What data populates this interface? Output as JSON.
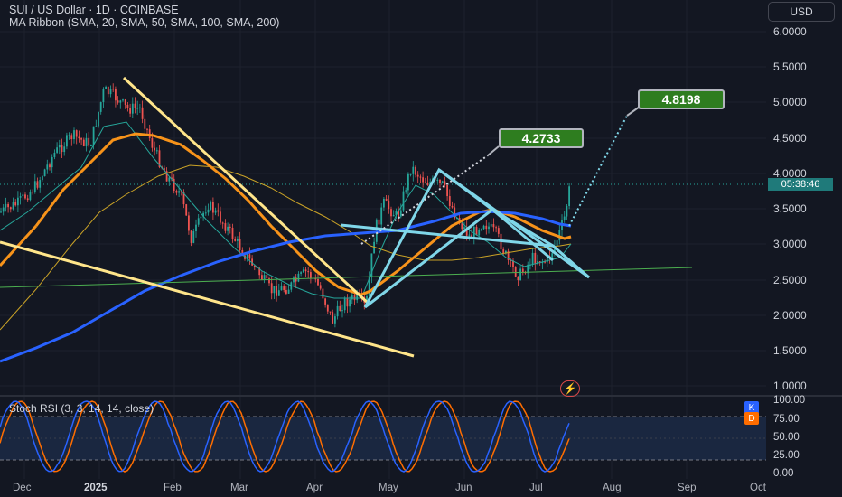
{
  "header": {
    "title": "SUI / US Dollar · 1D · COINBASE",
    "indicator": "MA Ribbon (SMA, 20, SMA, 50, SMA, 100, SMA, 200)",
    "currency_button": "USD"
  },
  "price_axis": {
    "labels": [
      "6.0000",
      "5.5000",
      "5.0000",
      "4.5000",
      "4.0000",
      "3.5000",
      "3.0000",
      "2.5000",
      "2.0000",
      "1.5000",
      "1.0000"
    ],
    "countdown": "05:38:46"
  },
  "annotations": {
    "target_1": "4.2733",
    "target_2": "4.8198"
  },
  "stoch_rsi": {
    "title": "Stoch RSI (3, 3, 14, 14, close)",
    "k_tag": "K",
    "d_tag": "D",
    "labels": [
      "100.00",
      "75.00",
      "50.00",
      "25.00",
      "0.00"
    ],
    "k_color": "#2962ff",
    "d_color": "#ff6d00"
  },
  "time_axis": {
    "labels": [
      {
        "text": "Dec",
        "bold": false
      },
      {
        "text": "2025",
        "bold": true
      },
      {
        "text": "Feb",
        "bold": false
      },
      {
        "text": "Mar",
        "bold": false
      },
      {
        "text": "Apr",
        "bold": false
      },
      {
        "text": "May",
        "bold": false
      },
      {
        "text": "Jun",
        "bold": false
      },
      {
        "text": "Jul",
        "bold": false
      },
      {
        "text": "Aug",
        "bold": false
      },
      {
        "text": "Sep",
        "bold": false
      },
      {
        "text": "Oct",
        "bold": false
      }
    ]
  },
  "colors": {
    "background": "#131722",
    "up_candle": "#26a69a",
    "down_candle": "#ef5350",
    "sma20": "#26a69a",
    "sma50": "#f7931a",
    "sma100": "#c9a227",
    "sma200": "#2962ff",
    "trendline_yellow": "#ffe58a",
    "pattern_cyan": "#7fd6e8",
    "support_green": "#4caf50",
    "callout_green": "#2e7d1f"
  }
}
